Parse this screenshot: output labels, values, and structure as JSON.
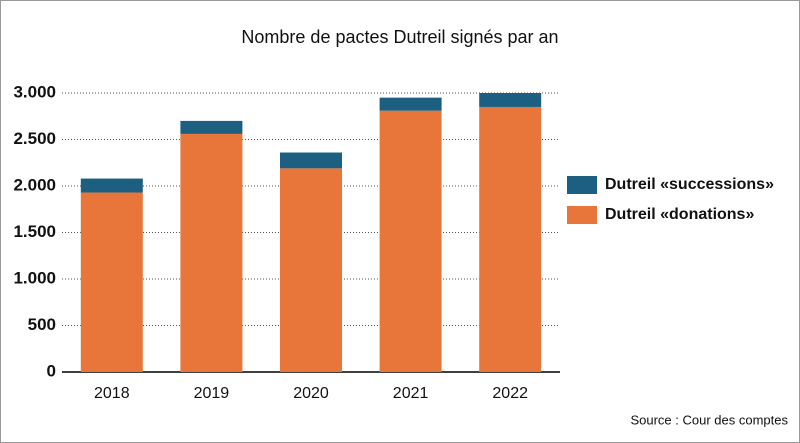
{
  "chart_data": {
    "type": "stacked-bar",
    "title": "Nombre de pactes Dutreil signés par an",
    "categories": [
      "2018",
      "2019",
      "2020",
      "2021",
      "2022"
    ],
    "series": [
      {
        "name": "Dutreil «donations»",
        "color": "#e8763a",
        "values": [
          1930,
          2560,
          2190,
          2810,
          2850
        ]
      },
      {
        "name": "Dutreil «successions»",
        "color": "#1c5f80",
        "values": [
          150,
          140,
          170,
          140,
          150
        ]
      }
    ],
    "ylim": [
      0,
      3000
    ],
    "yticks": [
      0,
      500,
      {
        "value": 1000,
        "label": "1.000"
      },
      {
        "value": 1500,
        "label": "1.500"
      },
      {
        "value": 2000,
        "label": "2.000"
      },
      {
        "value": 2500,
        "label": "2.500"
      },
      {
        "value": 3000,
        "label": "3.000"
      }
    ],
    "grid": true,
    "source": "Source : Cour des comptes"
  }
}
